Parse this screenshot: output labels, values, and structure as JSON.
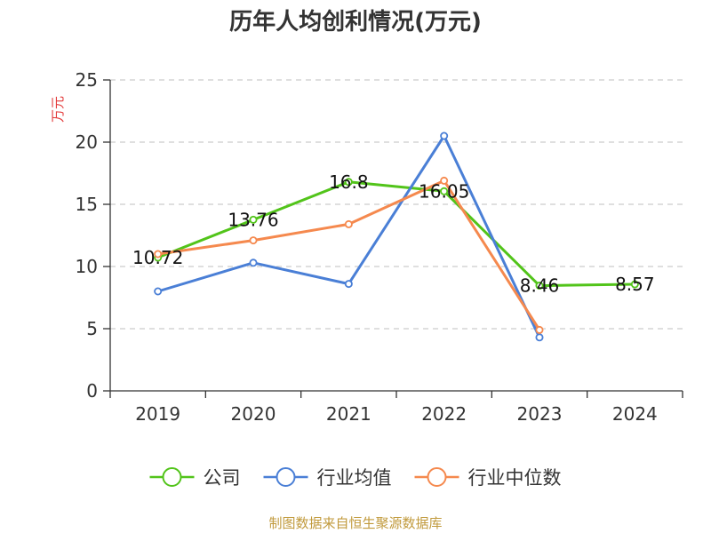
{
  "chart_data": {
    "type": "line",
    "title": "历年人均创利情况(万元)",
    "ylabel": "万元",
    "xlabel": "",
    "categories": [
      "2019",
      "2020",
      "2021",
      "2022",
      "2023",
      "2024"
    ],
    "ylim": [
      0,
      25
    ],
    "yticks": [
      0,
      5,
      10,
      15,
      20,
      25
    ],
    "grid": true,
    "legend_position": "bottom",
    "series": [
      {
        "name": "公司",
        "color": "#52c41a",
        "values": [
          10.72,
          13.76,
          16.8,
          16.05,
          8.46,
          8.57
        ],
        "labels": [
          "10.72",
          "13.76",
          "16.8",
          "16.05",
          "8.46",
          "8.57"
        ],
        "show_labels": true
      },
      {
        "name": "行业均值",
        "color": "#4a7fd6",
        "values": [
          8.0,
          10.3,
          8.6,
          20.5,
          4.3,
          null
        ],
        "show_labels": false
      },
      {
        "name": "行业中位数",
        "color": "#f5894e",
        "values": [
          11.0,
          12.1,
          13.4,
          16.9,
          4.9,
          null
        ],
        "show_labels": false
      }
    ]
  },
  "source": "制图数据来自恒生聚源数据库"
}
